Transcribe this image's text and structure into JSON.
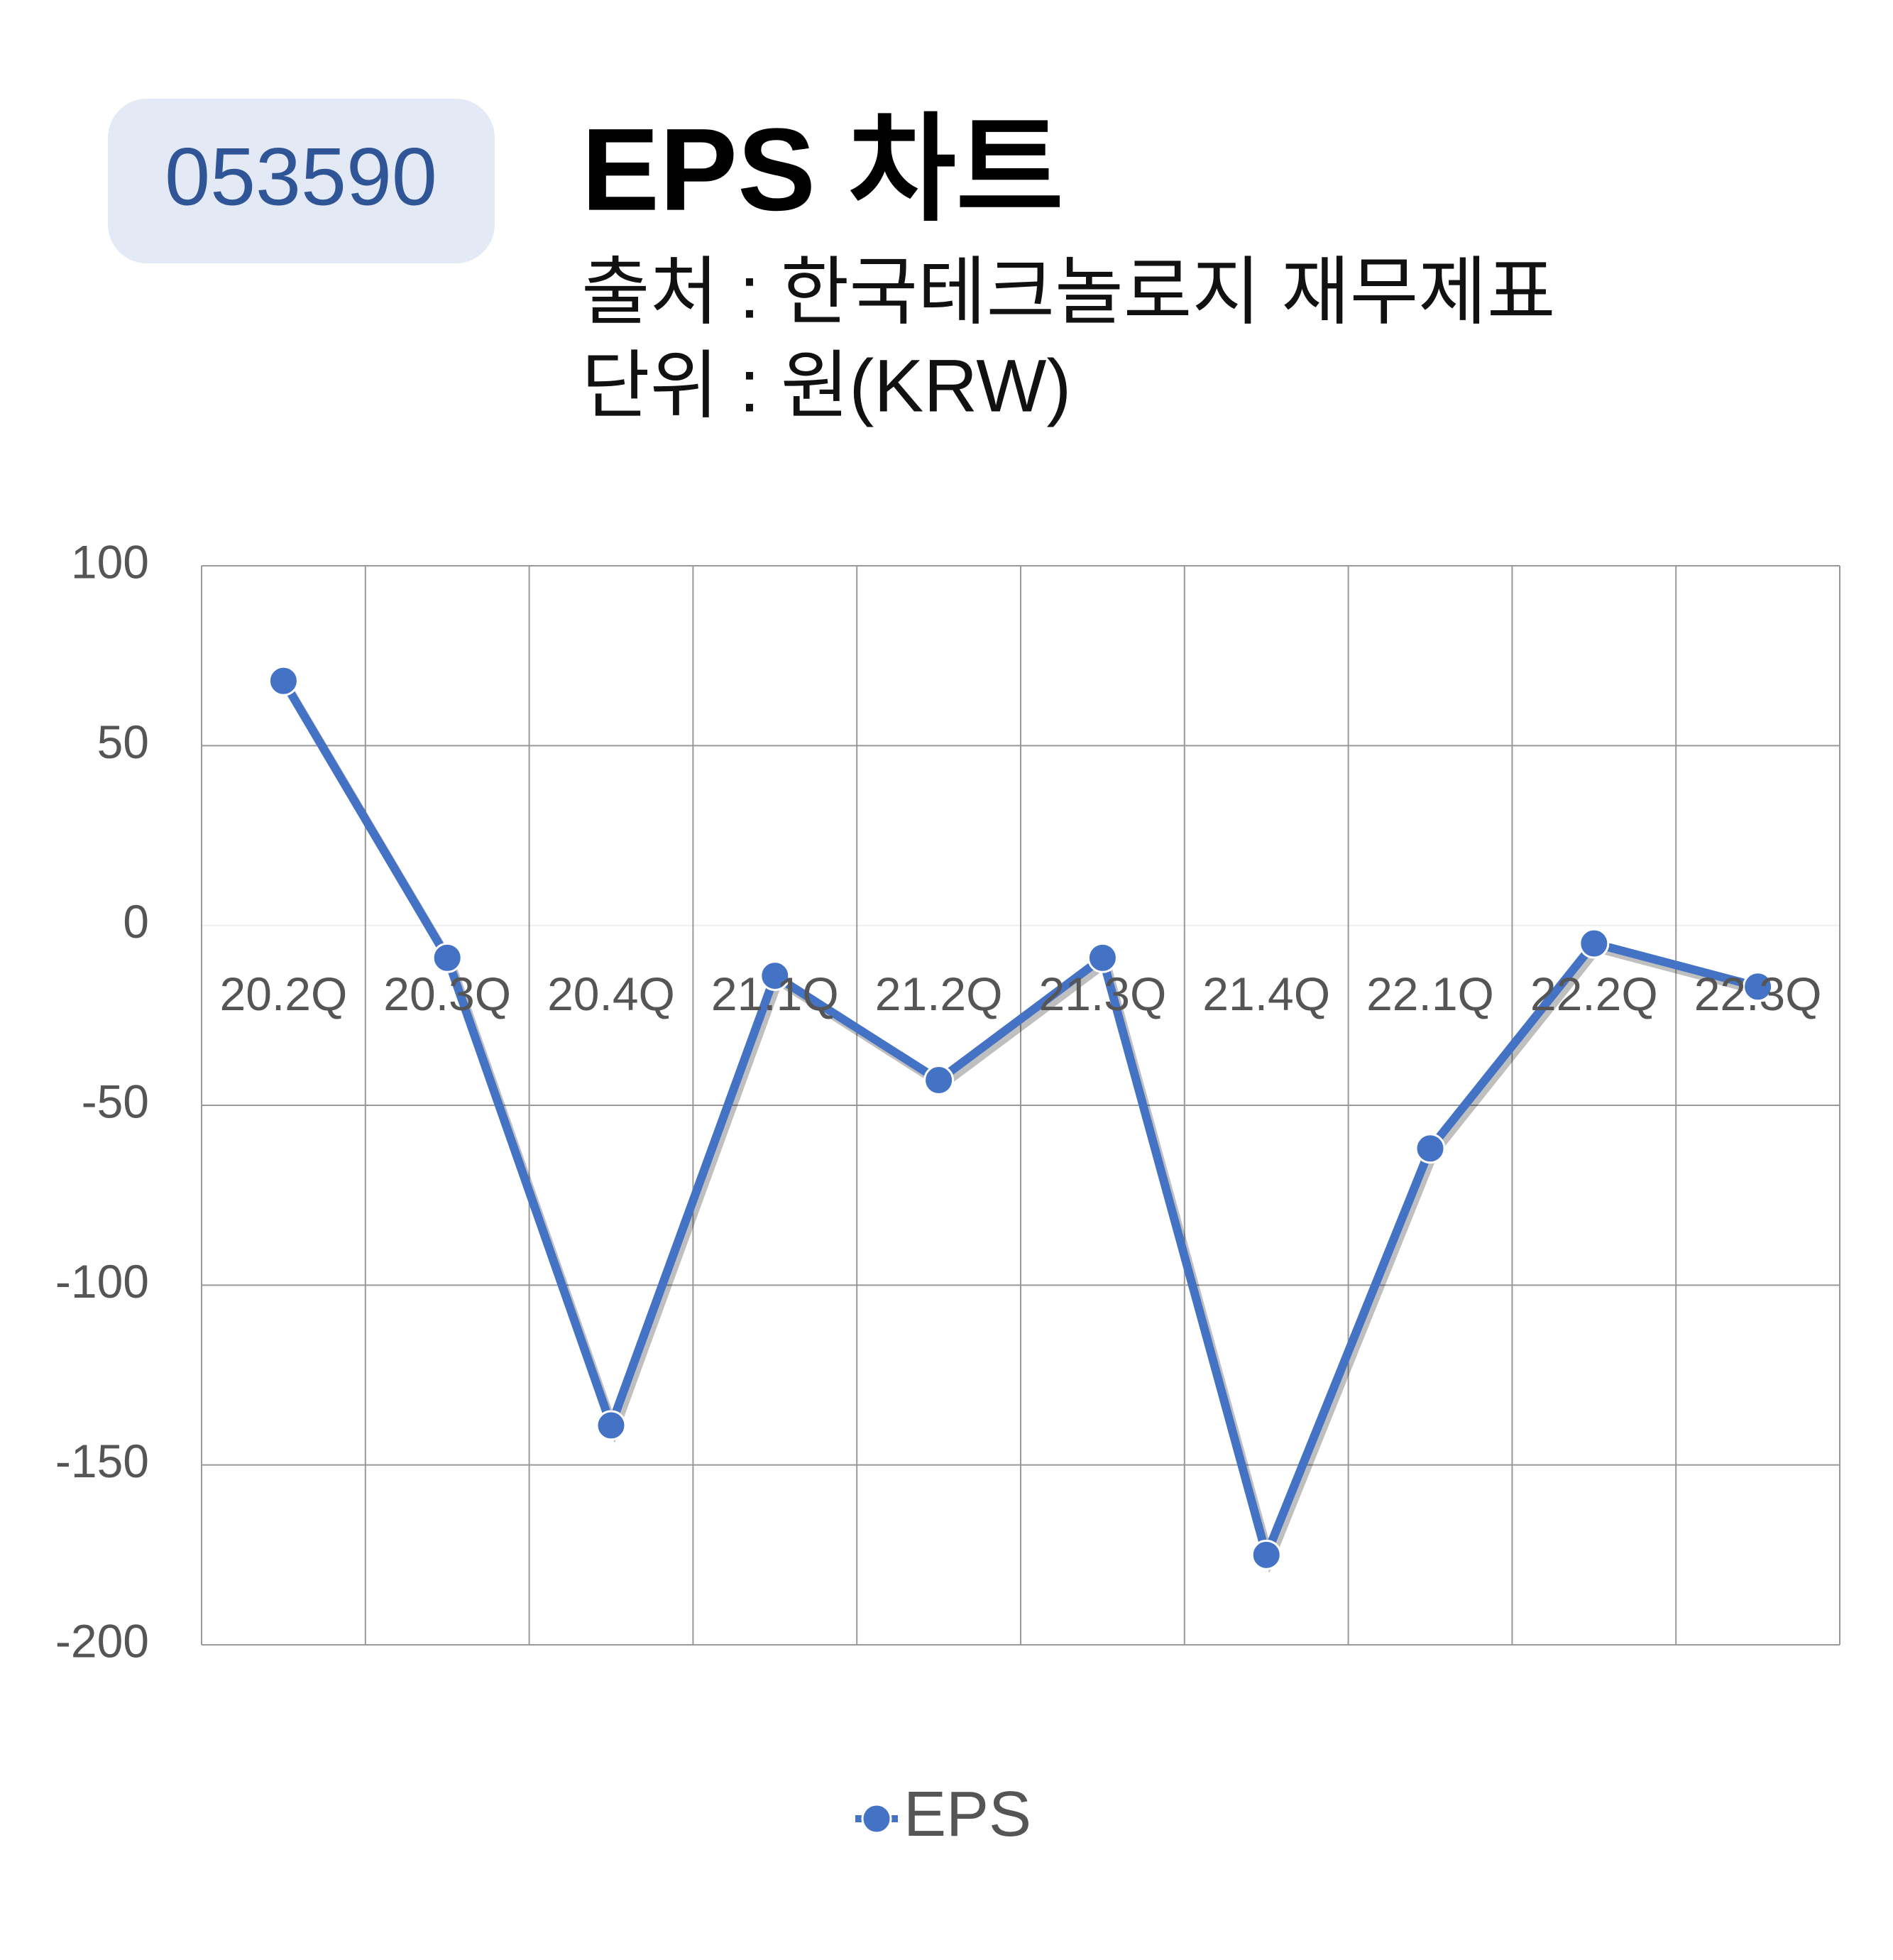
{
  "chart_data": {
    "type": "line",
    "code": "053590",
    "title": "EPS 차트",
    "source": "출처 : 한국테크놀로지 재무제표",
    "unit": "단위 : 원(KRW)",
    "categories": [
      "20.2Q",
      "20.3Q",
      "20.4Q",
      "21.1Q",
      "21.2Q",
      "21.3Q",
      "21.4Q",
      "22.1Q",
      "22.2Q",
      "22.3Q"
    ],
    "series": [
      {
        "name": "EPS",
        "color": "#4472c4",
        "values": [
          68,
          -9,
          -139,
          -14,
          -43,
          -9,
          -175,
          -62,
          -5,
          -17
        ]
      }
    ],
    "ylim": [
      -200,
      100
    ],
    "yticks": [
      -200,
      -150,
      -100,
      -50,
      0,
      50,
      100
    ],
    "grid": true,
    "legend": "bottom"
  }
}
